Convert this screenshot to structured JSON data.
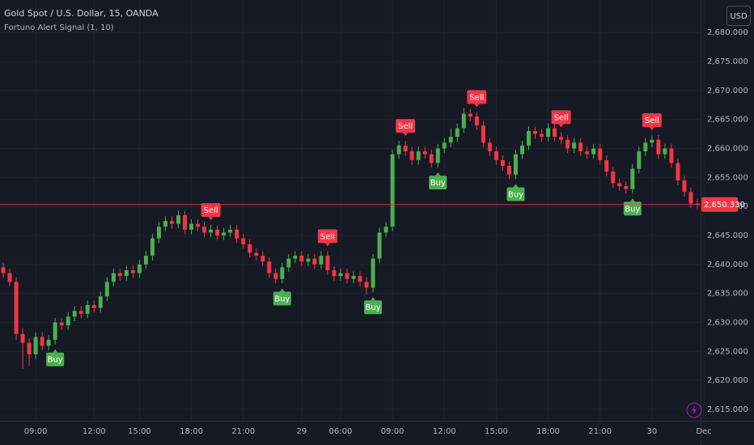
{
  "chart_data": {
    "type": "candlestick",
    "title": "Gold Spot / U.S. Dollar, 15, OANDA",
    "subtitle": "Fortuno Alert Signal (1, 10)",
    "currency": "USD",
    "up_color": "#4caf50",
    "down_color": "#f23645",
    "grid": true,
    "ylim": [
      2613.05,
      2685.6
    ],
    "yticks": [
      {
        "value": 2615,
        "label": "2,615.000"
      },
      {
        "value": 2620,
        "label": "2,620.000"
      },
      {
        "value": 2625,
        "label": "2,625.000"
      },
      {
        "value": 2630,
        "label": "2,630.000"
      },
      {
        "value": 2635,
        "label": "2,635.000"
      },
      {
        "value": 2640,
        "label": "2,640.000"
      },
      {
        "value": 2645,
        "label": "2,645.000"
      },
      {
        "value": 2650,
        "label": "2,650.000"
      },
      {
        "value": 2655,
        "label": "2,655.000"
      },
      {
        "value": 2660,
        "label": "2,660.000"
      },
      {
        "value": 2665,
        "label": "2,665.000"
      },
      {
        "value": 2670,
        "label": "2,670.000"
      },
      {
        "value": 2675,
        "label": "2,675.000"
      },
      {
        "value": 2680,
        "label": "2,680.000"
      }
    ],
    "last_price": {
      "value": 2650.33,
      "label": "2,650.330"
    },
    "categories": [
      null,
      null,
      null,
      null,
      null,
      "09:00",
      null,
      null,
      null,
      null,
      null,
      null,
      null,
      null,
      "12:00",
      null,
      null,
      null,
      null,
      null,
      null,
      "15:00",
      null,
      null,
      null,
      null,
      null,
      null,
      null,
      "18:00",
      null,
      null,
      null,
      null,
      null,
      null,
      null,
      "21:00",
      null,
      null,
      null,
      null,
      null,
      null,
      null,
      null,
      "29",
      null,
      null,
      null,
      null,
      null,
      "06:00",
      null,
      null,
      null,
      null,
      null,
      null,
      null,
      "09:00",
      null,
      null,
      null,
      null,
      null,
      null,
      null,
      "12:00",
      null,
      null,
      null,
      null,
      null,
      null,
      null,
      "15:00",
      null,
      null,
      null,
      null,
      null,
      null,
      null,
      "18:00",
      null,
      null,
      null,
      null,
      null,
      null,
      null,
      "21:00",
      null,
      null,
      null,
      null,
      null,
      null,
      null,
      "30",
      null,
      null,
      null,
      null,
      null,
      null,
      null,
      "Dec"
    ],
    "open": [
      2639.5,
      2638.5,
      2637.0,
      2628.0,
      2626.5,
      2624.5,
      2627.5,
      2626.0,
      2627.0,
      2630.0,
      2629.5,
      2631.0,
      2632.0,
      2631.5,
      2633.0,
      2632.5,
      2634.5,
      2637.0,
      2638.5,
      2638.0,
      2639.0,
      2638.5,
      2640.0,
      2641.5,
      2644.5,
      2646.5,
      2647.5,
      2647.0,
      2648.5,
      2646.0,
      2647.0,
      2646.5,
      2645.5,
      2646.0,
      2645.0,
      2645.5,
      2646.0,
      2644.5,
      2643.5,
      2642.0,
      2641.5,
      2640.5,
      2638.5,
      2637.5,
      2639.5,
      2641.0,
      2641.5,
      2640.5,
      2641.0,
      2640.0,
      2641.5,
      2639.0,
      2638.0,
      2638.5,
      2637.5,
      2638.0,
      2637.0,
      2636.0,
      2641.0,
      2645.5,
      2646.5,
      2659.0,
      2660.5,
      2659.5,
      2658.0,
      2659.5,
      2659.0,
      2657.5,
      2660.0,
      2661.0,
      2662.0,
      2663.5,
      2666.0,
      2665.5,
      2664.0,
      2661.0,
      2659.5,
      2658.0,
      2657.0,
      2655.5,
      2659.0,
      2660.5,
      2663.0,
      2662.5,
      2662.0,
      2663.5,
      2662.0,
      2661.5,
      2660.0,
      2661.0,
      2659.5,
      2659.0,
      2660.0,
      2658.0,
      2656.0,
      2654.0,
      2653.5,
      2653.0,
      2656.5,
      2659.5,
      2661.0,
      2661.5,
      2659.0,
      2660.0,
      2657.5,
      2654.5,
      2652.5,
      2650.5,
      null
    ],
    "high": [
      2640.3,
      2639.3,
      2637.8,
      2629.0,
      2627.3,
      2628.3,
      2628.3,
      2627.8,
      2630.8,
      2630.8,
      2631.8,
      2632.8,
      2632.8,
      2633.8,
      2633.8,
      2635.3,
      2637.8,
      2639.3,
      2639.3,
      2639.8,
      2639.8,
      2640.8,
      2642.3,
      2645.3,
      2647.3,
      2648.3,
      2648.3,
      2649.3,
      2649.3,
      2647.8,
      2647.8,
      2647.3,
      2646.8,
      2646.8,
      2646.3,
      2646.8,
      2646.8,
      2645.3,
      2644.3,
      2642.8,
      2642.3,
      2641.3,
      2639.3,
      2640.3,
      2641.8,
      2642.3,
      2642.3,
      2641.8,
      2641.8,
      2642.3,
      2642.3,
      2639.8,
      2639.3,
      2639.3,
      2638.8,
      2638.8,
      2637.8,
      2641.8,
      2646.3,
      2647.3,
      2659.8,
      2661.3,
      2661.3,
      2660.3,
      2660.3,
      2660.3,
      2659.8,
      2660.8,
      2661.8,
      2663.5,
      2664.3,
      2667.0,
      2666.8,
      2666.3,
      2664.8,
      2661.8,
      2660.3,
      2658.8,
      2657.8,
      2659.8,
      2661.3,
      2663.8,
      2663.8,
      2663.3,
      2664.3,
      2664.3,
      2662.8,
      2662.3,
      2661.8,
      2661.8,
      2660.3,
      2660.8,
      2660.8,
      2658.8,
      2656.8,
      2654.8,
      2654.3,
      2657.3,
      2660.3,
      2661.8,
      2662.3,
      2662.3,
      2660.8,
      2660.8,
      2658.3,
      2655.3,
      2653.3,
      2651.3,
      null
    ],
    "low": [
      2637.7,
      2636.2,
      2627.0,
      2622.0,
      2622.5,
      2623.7,
      2625.2,
      2625.2,
      2626.2,
      2628.7,
      2628.7,
      2630.2,
      2630.7,
      2630.7,
      2631.7,
      2631.7,
      2633.7,
      2636.2,
      2637.2,
      2637.2,
      2637.7,
      2637.7,
      2639.2,
      2640.7,
      2643.7,
      2645.7,
      2646.2,
      2646.2,
      2645.2,
      2645.2,
      2645.7,
      2644.7,
      2644.7,
      2644.2,
      2644.2,
      2644.7,
      2643.7,
      2642.7,
      2641.2,
      2640.7,
      2639.7,
      2637.7,
      2636.7,
      2636.7,
      2638.7,
      2640.2,
      2639.7,
      2639.7,
      2639.2,
      2639.2,
      2638.2,
      2637.2,
      2637.2,
      2636.7,
      2636.7,
      2636.2,
      2634.8,
      2635.2,
      2640.2,
      2644.7,
      2645.7,
      2658.2,
      2658.7,
      2657.2,
      2657.2,
      2658.2,
      2656.7,
      2656.7,
      2659.2,
      2660.2,
      2661.2,
      2662.7,
      2664.7,
      2663.2,
      2660.2,
      2658.7,
      2657.2,
      2656.2,
      2654.7,
      2654.7,
      2658.2,
      2659.7,
      2661.7,
      2661.2,
      2661.2,
      2661.2,
      2660.7,
      2659.2,
      2659.2,
      2658.7,
      2658.2,
      2658.2,
      2657.2,
      2655.2,
      2653.2,
      2652.7,
      2652.2,
      2652.2,
      2655.7,
      2658.7,
      2660.2,
      2658.2,
      2658.2,
      2656.7,
      2653.7,
      2651.7,
      2649.7,
      2649.5,
      null
    ],
    "close": [
      2638.5,
      2637.0,
      2628.0,
      2626.5,
      2624.5,
      2627.5,
      2626.0,
      2627.0,
      2630.0,
      2629.5,
      2631.0,
      2632.0,
      2631.5,
      2633.0,
      2632.5,
      2634.5,
      2637.0,
      2638.5,
      2638.0,
      2639.0,
      2638.5,
      2640.0,
      2641.5,
      2644.5,
      2646.5,
      2647.5,
      2647.0,
      2648.5,
      2646.0,
      2647.0,
      2646.5,
      2645.5,
      2646.0,
      2645.0,
      2645.5,
      2646.0,
      2644.5,
      2643.5,
      2642.0,
      2641.5,
      2640.5,
      2638.5,
      2637.5,
      2639.5,
      2641.0,
      2641.5,
      2640.5,
      2641.0,
      2640.0,
      2641.5,
      2639.0,
      2638.0,
      2638.5,
      2637.5,
      2638.0,
      2637.0,
      2636.0,
      2641.0,
      2645.5,
      2646.5,
      2659.0,
      2660.5,
      2659.5,
      2658.0,
      2659.5,
      2659.0,
      2657.5,
      2660.0,
      2661.0,
      2662.0,
      2663.5,
      2666.0,
      2665.5,
      2664.0,
      2661.0,
      2659.5,
      2658.0,
      2657.0,
      2655.5,
      2659.0,
      2660.5,
      2663.0,
      2662.5,
      2662.0,
      2663.5,
      2662.0,
      2661.5,
      2660.0,
      2661.0,
      2659.5,
      2659.0,
      2660.0,
      2658.0,
      2656.0,
      2654.0,
      2653.5,
      2653.0,
      2656.5,
      2659.5,
      2661.0,
      2661.5,
      2659.0,
      2660.0,
      2657.5,
      2654.5,
      2652.5,
      2650.5,
      2650.33,
      null
    ],
    "markers": [
      {
        "name": "Buy",
        "color": "#4caf50",
        "position": "below",
        "indices": [
          8,
          43,
          57,
          67,
          79,
          97
        ]
      },
      {
        "name": "Sell",
        "color": "#f23645",
        "position": "above",
        "indices": [
          32,
          50,
          62,
          73,
          86,
          100
        ]
      }
    ]
  }
}
